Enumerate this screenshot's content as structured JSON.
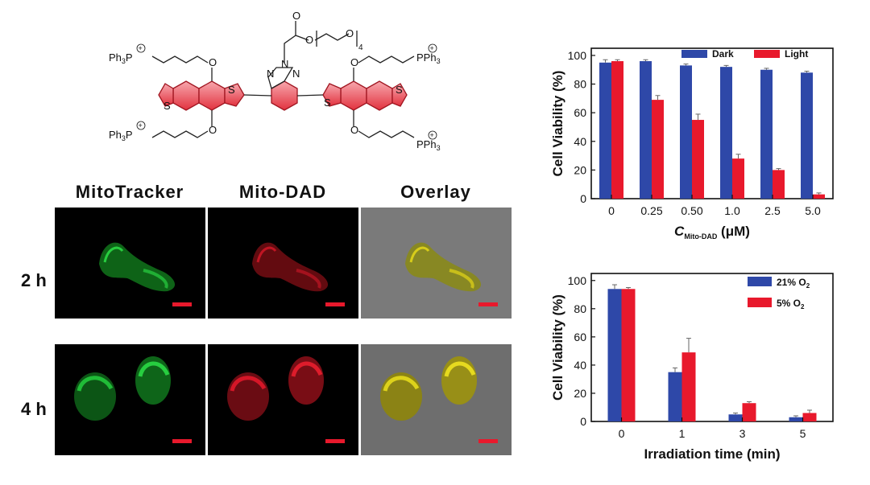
{
  "structure": {
    "ph3p": "Ph",
    "ph3p_sub": "3",
    "ph3p_p": "P",
    "pph3": "PPh",
    "pph3_sub": "3",
    "plus": "+",
    "o": "O",
    "s": "S",
    "n": "N",
    "peg_sub": "4"
  },
  "microscopy": {
    "columns": [
      "MitoTracker",
      "Mito-DAD",
      "Overlay"
    ],
    "rows": [
      "2 h",
      "4 h"
    ]
  },
  "colors": {
    "blue": "#2e48a8",
    "red": "#e8192c",
    "green": "#1fcf3a",
    "yellow": "#e0d41a"
  },
  "chart_data": [
    {
      "type": "bar",
      "title": "",
      "ylabel": "Cell Viability (%)",
      "xlabel_main": "C",
      "xlabel_sub": "Mito-DAD",
      "xlabel_unit": " (μM)",
      "categories": [
        "0",
        "0.25",
        "0.50",
        "1.0",
        "2.5",
        "5.0"
      ],
      "ylim": [
        0,
        105
      ],
      "yticks": [
        0,
        20,
        40,
        60,
        80,
        100
      ],
      "legend_position": "top",
      "series": [
        {
          "name": "Dark",
          "color": "#2e48a8",
          "values": [
            95,
            96,
            93,
            92,
            90,
            88
          ],
          "errors": [
            2,
            1,
            1,
            1,
            1,
            1
          ]
        },
        {
          "name": "Light",
          "color": "#e8192c",
          "values": [
            96,
            69,
            55,
            28,
            20,
            3
          ],
          "errors": [
            1,
            3,
            4,
            3,
            1,
            1
          ]
        }
      ]
    },
    {
      "type": "bar",
      "title": "",
      "ylabel": "Cell Viability (%)",
      "xlabel": "Irradiation time (min)",
      "categories": [
        "0",
        "1",
        "3",
        "5"
      ],
      "ylim": [
        0,
        105
      ],
      "yticks": [
        0,
        20,
        40,
        60,
        80,
        100
      ],
      "legend_position": "top-right",
      "series": [
        {
          "name": "21% O",
          "name_sub": "2",
          "color": "#2e48a8",
          "values": [
            94,
            35,
            5,
            3
          ],
          "errors": [
            3,
            3,
            1,
            1
          ]
        },
        {
          "name": "5% O",
          "name_sub": "2",
          "color": "#e8192c",
          "values": [
            94,
            49,
            13,
            6
          ],
          "errors": [
            1,
            10,
            1,
            2
          ]
        }
      ]
    }
  ]
}
